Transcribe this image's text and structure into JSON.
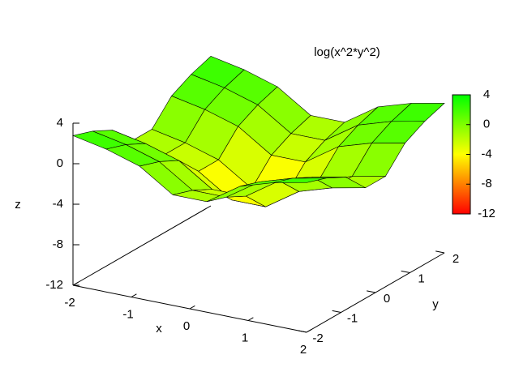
{
  "chart_data": {
    "type": "surface",
    "title": "log(x^2*y^2)",
    "x_label": "x",
    "y_label": "y",
    "z_label": "z",
    "x": [
      -2,
      -1.43,
      -0.86,
      -0.29,
      0.29,
      0.86,
      1.43,
      2
    ],
    "y": [
      -2,
      -1.43,
      -0.86,
      -0.29,
      0.29,
      0.86,
      1.43,
      2
    ],
    "z": [
      [
        2.77,
        2.1,
        1.08,
        -1.09,
        -1.09,
        1.08,
        2.1,
        2.77
      ],
      [
        2.1,
        1.43,
        0.41,
        -1.76,
        -1.76,
        0.41,
        1.43,
        2.1
      ],
      [
        1.08,
        0.41,
        -0.6,
        -2.78,
        -2.78,
        -0.6,
        0.41,
        1.08
      ],
      [
        -1.09,
        -1.76,
        -2.78,
        -4.95,
        -4.95,
        -2.78,
        -1.76,
        -1.09
      ],
      [
        -1.09,
        -1.76,
        -2.78,
        -4.95,
        -4.95,
        -2.78,
        -1.76,
        -1.09
      ],
      [
        1.08,
        0.41,
        -0.6,
        -2.78,
        -2.78,
        -0.6,
        0.41,
        1.08
      ],
      [
        2.1,
        1.43,
        0.41,
        -1.76,
        -1.76,
        0.41,
        1.43,
        2.1
      ],
      [
        2.77,
        2.1,
        1.08,
        -1.09,
        -1.09,
        1.08,
        2.1,
        2.77
      ]
    ],
    "xlim": [
      -2,
      2
    ],
    "xticks": [
      -2,
      -1,
      0,
      1,
      2
    ],
    "ylim": [
      -2,
      2
    ],
    "yticks": [
      -2,
      -1,
      0,
      1,
      2
    ],
    "zlim": [
      -12,
      4
    ],
    "zticks": [
      -12,
      -8,
      -4,
      0,
      4
    ],
    "cblim": [
      -12,
      4
    ],
    "cbticks": [
      -12,
      -8,
      -4,
      0,
      4
    ],
    "palette": [
      "#ff0000",
      "#ffff00",
      "#00ff00"
    ]
  }
}
